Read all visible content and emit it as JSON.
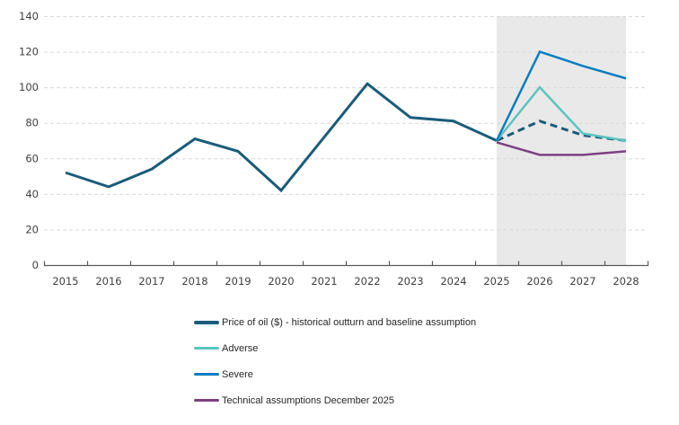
{
  "chart_data": {
    "type": "line",
    "title": "",
    "xlabel": "",
    "ylabel": "",
    "categories": [
      2015,
      2016,
      2017,
      2018,
      2019,
      2020,
      2021,
      2022,
      2023,
      2024,
      2025,
      2026,
      2027,
      2028
    ],
    "ylim": [
      0,
      140
    ],
    "ytick_step": 20,
    "yticks": [
      0,
      20,
      40,
      60,
      80,
      100,
      120,
      140
    ],
    "grid": "horizontal-dashed",
    "legend_position": "bottom-left",
    "shaded_region": {
      "from": 2025,
      "to": 2028,
      "top": 140,
      "color": "#E9E9E9"
    },
    "axis_color": "#595959",
    "gridline_color": "#D9D9D9",
    "label_color": "#404040",
    "series": [
      {
        "id": "price-of-oil-historical",
        "color": "#1A5C7A",
        "dash": "solid",
        "width": 3,
        "years": [
          2015,
          2016,
          2017,
          2018,
          2019,
          2020,
          2021,
          2022,
          2023,
          2024,
          2025
        ],
        "values": [
          52,
          44,
          54,
          71,
          64,
          42,
          72,
          102,
          83,
          81,
          70
        ]
      },
      {
        "id": "baseline-assumption-forecast",
        "color": "#1A5C7A",
        "dash": "dashed",
        "width": 3,
        "years": [
          2025,
          2026,
          2027,
          2028
        ],
        "values": [
          70,
          81,
          73,
          70
        ]
      },
      {
        "id": "adverse",
        "color": "#5BC4BF",
        "dash": "solid",
        "width": 2.5,
        "years": [
          2025,
          2026,
          2027,
          2028
        ],
        "values": [
          70,
          100,
          74,
          70
        ]
      },
      {
        "id": "severe",
        "color": "#0A7DC2",
        "dash": "solid",
        "width": 2.5,
        "years": [
          2025,
          2026,
          2027,
          2028
        ],
        "values": [
          70,
          120,
          112,
          105
        ]
      },
      {
        "id": "technical-assumptions",
        "color": "#7D4182",
        "dash": "solid",
        "width": 2.5,
        "years": [
          2025,
          2026,
          2027,
          2028
        ],
        "values": [
          69,
          62,
          62,
          64
        ]
      }
    ],
    "legend": [
      {
        "label": "Price of oil ($) - historical outturn and baseline assumption",
        "color": "#1A5C7A",
        "thickness": 4
      },
      {
        "label": "Adverse",
        "color": "#5BC4BF",
        "thickness": 3.5
      },
      {
        "label": "Severe",
        "color": "#0A7DC2",
        "thickness": 3.5
      },
      {
        "label": "Technical assumptions December 2025",
        "color": "#7D4182",
        "thickness": 3.5
      }
    ]
  }
}
